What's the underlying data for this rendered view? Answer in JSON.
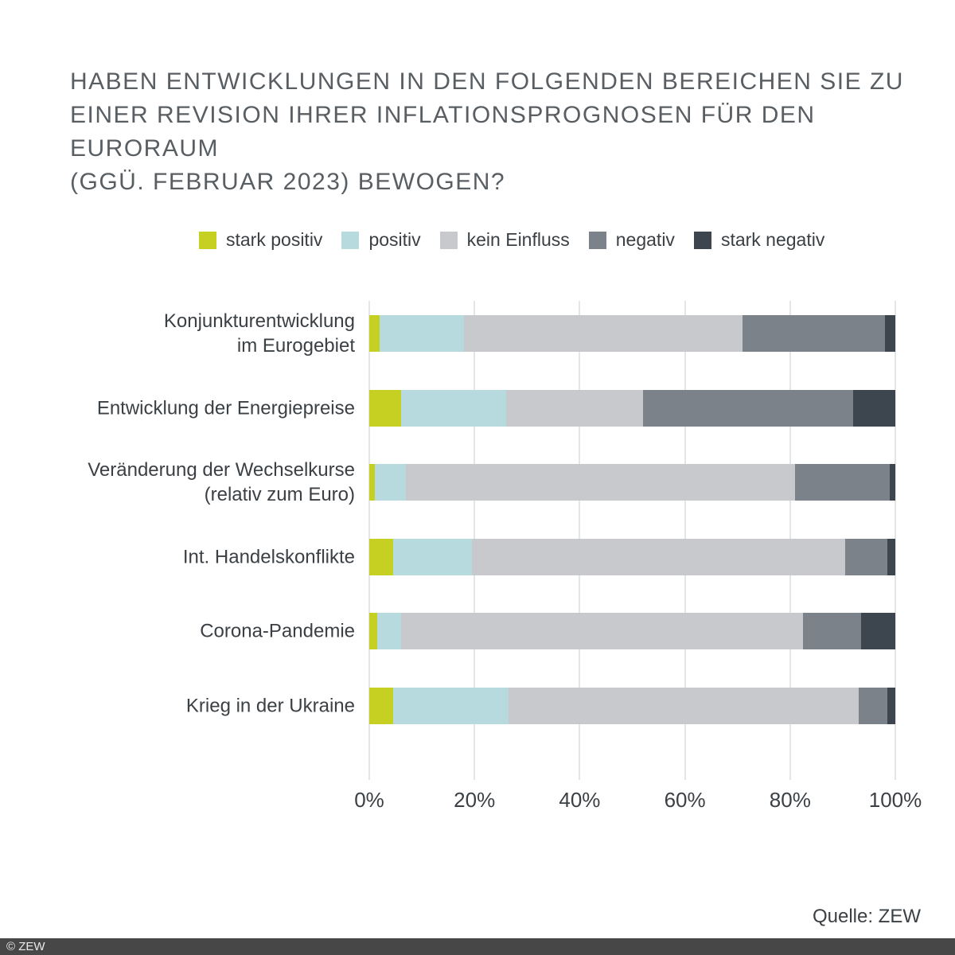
{
  "page": {
    "title_lines": [
      "HABEN ENTWICKLUNGEN IN DEN FOLGENDEN BEREICHEN SIE ZU",
      "EINER REVISION IHRER INFLATIONSPROGNOSEN FÜR DEN EURORAUM",
      "(GGÜ. FEBRUAR 2023) BEWOGEN?"
    ],
    "source": "Quelle: ZEW",
    "footer_copyright": "© ZEW"
  },
  "colors": {
    "title_text": "#595e63",
    "label_text": "#3b4045",
    "gridline": "#e4e5e6",
    "footer_background": "#474747",
    "footer_text": "#eaeaea"
  },
  "chart_data": {
    "type": "bar",
    "orientation": "horizontal",
    "stacked": true,
    "unit": "%",
    "xlim": [
      0,
      100
    ],
    "grid": "vertical",
    "legend_position": "top",
    "x_ticks": [
      "0%",
      "20%",
      "40%",
      "60%",
      "80%",
      "100%"
    ],
    "categories": [
      "Konjunkturentwicklung\nim Eurogebiet",
      "Entwicklung der Energiepreise",
      "Veränderung der Wechselkurse\n(relativ zum Euro)",
      "Int. Handelskonflikte",
      "Corona-Pandemie",
      "Krieg in der Ukraine"
    ],
    "series": [
      {
        "name": "stark positiv",
        "color": "#c6d022",
        "values": [
          2,
          6,
          1,
          4.5,
          1.5,
          4.5
        ]
      },
      {
        "name": "positiv",
        "color": "#b6dade",
        "values": [
          16,
          20,
          6,
          15,
          4.5,
          22
        ]
      },
      {
        "name": "kein Einfluss",
        "color": "#c7c9cc",
        "values": [
          53,
          26,
          74,
          71,
          76.5,
          66.5
        ]
      },
      {
        "name": "negativ",
        "color": "#7b828a",
        "values": [
          27,
          40,
          18,
          8,
          11,
          5.5
        ]
      },
      {
        "name": "stark negativ",
        "color": "#3d454e",
        "values": [
          2,
          8,
          1,
          1.5,
          6.5,
          1.5
        ]
      }
    ]
  }
}
